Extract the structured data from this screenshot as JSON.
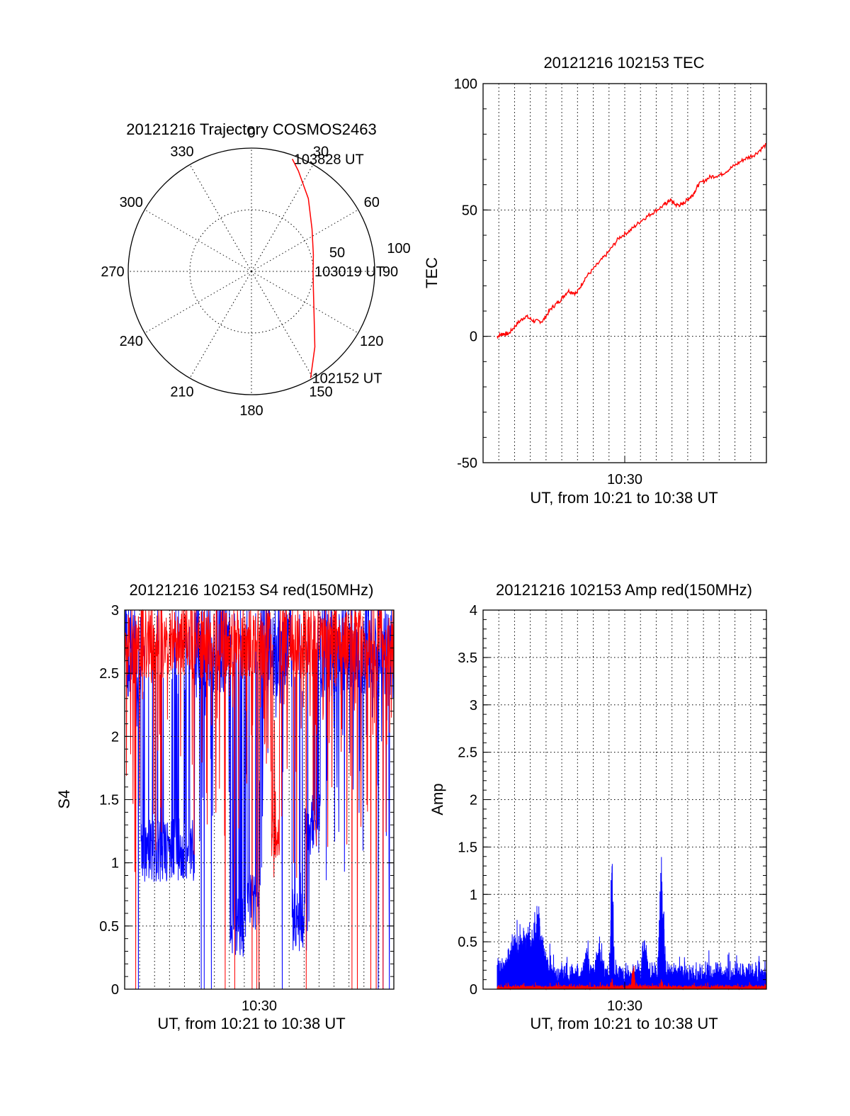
{
  "chart_data": [
    {
      "type": "polar-trajectory",
      "title": "20121216 Trajectory COSMOS2463",
      "angle_labels": [
        "0",
        "30",
        "60",
        "90",
        "120",
        "150",
        "180",
        "210",
        "240",
        "270",
        "300",
        "330"
      ],
      "radius_labels": [
        "50",
        "100"
      ],
      "radius_max": 100,
      "grid": true,
      "series": [
        {
          "color": "#ff0000",
          "points": [
            {
              "az": 151,
              "r": 99
            },
            {
              "az": 140,
              "r": 80
            },
            {
              "az": 125,
              "r": 62
            },
            {
              "az": 105,
              "r": 52
            },
            {
              "az": 90,
              "r": 50
            },
            {
              "az": 75,
              "r": 52
            },
            {
              "az": 55,
              "r": 60
            },
            {
              "az": 38,
              "r": 75
            },
            {
              "az": 25,
              "r": 90
            },
            {
              "az": 20,
              "r": 97
            }
          ]
        }
      ],
      "annotations": [
        {
          "text": "102152 UT",
          "az": 151,
          "r": 99
        },
        {
          "text": "103019 UT",
          "az": 90,
          "r": 50
        },
        {
          "text": "103828 UT",
          "az": 20,
          "r": 97
        }
      ]
    },
    {
      "type": "line",
      "title": "20121216 102153 TEC",
      "xlabel": "UT, from 10:21 to 10:38 UT",
      "ylabel": "TEC",
      "xticks": [
        "10:30"
      ],
      "xlim": [
        0,
        1
      ],
      "ylim": [
        -50,
        100
      ],
      "yticks": [
        "-50",
        "0",
        "50",
        "100"
      ],
      "grid": true,
      "series": [
        {
          "color": "#ff0000",
          "x": [
            0.05,
            0.07,
            0.09,
            0.12,
            0.15,
            0.18,
            0.21,
            0.24,
            0.27,
            0.3,
            0.33,
            0.36,
            0.4,
            0.44,
            0.48,
            0.52,
            0.56,
            0.6,
            0.64,
            0.66,
            0.68,
            0.7,
            0.72,
            0.74,
            0.76,
            0.8,
            0.84,
            0.88,
            0.92,
            0.96,
            1.0
          ],
          "y": [
            0,
            1,
            1,
            5,
            8,
            6,
            6,
            11,
            14,
            18,
            17,
            23,
            28,
            33,
            39,
            42,
            46,
            49,
            52,
            54,
            52,
            52,
            54,
            56,
            60,
            63,
            64,
            67,
            70,
            72,
            76
          ]
        }
      ]
    },
    {
      "type": "line",
      "title": "20121216 102153 S4 red(150MHz)",
      "xlabel": "UT, from 10:21 to 10:38 UT",
      "ylabel": "S4",
      "xticks": [
        "10:30"
      ],
      "xlim": [
        0,
        1
      ],
      "ylim": [
        0,
        3
      ],
      "yticks": [
        "0",
        "0.5",
        "1",
        "1.5",
        "2",
        "2.5",
        "3"
      ],
      "grid": true,
      "series": [
        {
          "color": "#0000ff",
          "seed": 3,
          "base": 2.7,
          "noise": 0.8,
          "dips": [
            [
              0.16,
              0.2,
              1.0
            ],
            [
              0.42,
              0.06,
              0.4
            ],
            [
              0.48,
              0.05,
              0.6
            ],
            [
              0.66,
              0.08,
              0.45
            ],
            [
              0.7,
              0.06,
              1.2
            ]
          ]
        },
        {
          "color": "#ff0000",
          "seed": 11,
          "base": 2.75,
          "noise": 0.6,
          "dips": [
            [
              0.56,
              0.03,
              1.0
            ]
          ]
        }
      ]
    },
    {
      "type": "line",
      "title": "20121216 102153 Amp red(150MHz)",
      "xlabel": "UT, from 10:21 to 10:38 UT",
      "ylabel": "Amp",
      "xticks": [
        "10:30"
      ],
      "xlim": [
        0,
        1
      ],
      "ylim": [
        0,
        4
      ],
      "yticks": [
        "0",
        "0.5",
        "1",
        "1.5",
        "2",
        "2.5",
        "3",
        "3.5",
        "4"
      ],
      "grid": true,
      "series": [
        {
          "color": "#0000ff",
          "seed": 5,
          "base": 0.15,
          "noise": 0.15,
          "bumps": [
            [
              0.15,
              0.1,
              0.55
            ],
            [
              0.195,
              0.025,
              0.5
            ],
            [
              0.365,
              0.02,
              0.25
            ],
            [
              0.41,
              0.02,
              0.4
            ],
            [
              0.455,
              0.008,
              1.8
            ],
            [
              0.57,
              0.015,
              0.4
            ],
            [
              0.63,
              0.015,
              1.4
            ]
          ]
        },
        {
          "color": "#ff0000",
          "seed": 9,
          "base": 0.02,
          "noise": 0.03,
          "bumps": [
            [
              0.455,
              0.005,
              0.12
            ],
            [
              0.53,
              0.008,
              0.35
            ],
            [
              0.63,
              0.005,
              0.12
            ]
          ]
        }
      ]
    }
  ]
}
